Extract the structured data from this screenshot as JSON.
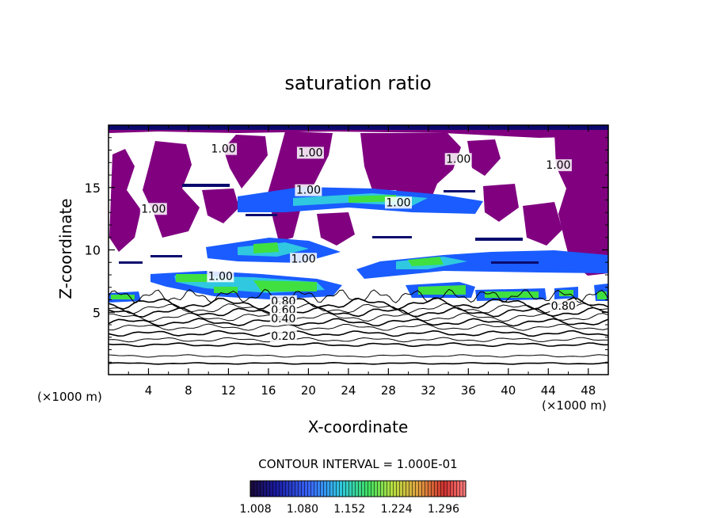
{
  "chart_data": {
    "type": "heatmap",
    "title": "saturation ratio",
    "xlabel": "X-coordinate",
    "ylabel": "Z-coordinate",
    "x_unit_left": "(×1000 m)",
    "x_unit_right": "(×1000 m)",
    "xlim": [
      0,
      50
    ],
    "ylim": [
      0,
      20
    ],
    "x_ticks": [
      4,
      8,
      12,
      16,
      20,
      24,
      28,
      32,
      36,
      40,
      44,
      48
    ],
    "y_ticks": [
      5,
      10,
      15
    ],
    "contour_interval_text": "CONTOUR INTERVAL = 1.000E-01",
    "colorbar": {
      "min": 1.0,
      "max": 1.33,
      "labels": [
        "1.008",
        "1.080",
        "1.152",
        "1.224",
        "1.296"
      ],
      "label_values": [
        1.008,
        1.08,
        1.152,
        1.224,
        1.296
      ]
    },
    "colors": {
      "saturated_fill": "#800080",
      "low": "#0a0a6e",
      "mid_blue": "#1a5cff",
      "cyan": "#30c8e0",
      "green": "#40e040",
      "red": "#d02020"
    },
    "contour_labels": [
      {
        "text": "1.00",
        "x": 11.5,
        "y": 17.8
      },
      {
        "text": "1.00",
        "x": 20.2,
        "y": 17.5
      },
      {
        "text": "1.00",
        "x": 35.0,
        "y": 17.0
      },
      {
        "text": "1.00",
        "x": 45.0,
        "y": 16.5
      },
      {
        "text": "1.00",
        "x": 20.0,
        "y": 14.5
      },
      {
        "text": "1.00",
        "x": 29.0,
        "y": 13.5
      },
      {
        "text": "1.00",
        "x": 4.5,
        "y": 13.0
      },
      {
        "text": "1.00",
        "x": 19.5,
        "y": 9.0
      },
      {
        "text": "1.00",
        "x": 11.2,
        "y": 7.6
      },
      {
        "text": "0.80",
        "x": 17.5,
        "y": 5.6
      },
      {
        "text": "0.60",
        "x": 17.5,
        "y": 4.9
      },
      {
        "text": "0.40",
        "x": 17.5,
        "y": 4.2
      },
      {
        "text": "0.20",
        "x": 17.5,
        "y": 2.8
      },
      {
        "text": "0.80",
        "x": 45.5,
        "y": 5.2
      }
    ],
    "iso_lines_z": [
      0.9,
      1.5,
      2.4,
      2.8,
      3.3,
      3.8,
      4.2,
      4.6,
      5.0,
      5.3,
      5.7
    ]
  }
}
